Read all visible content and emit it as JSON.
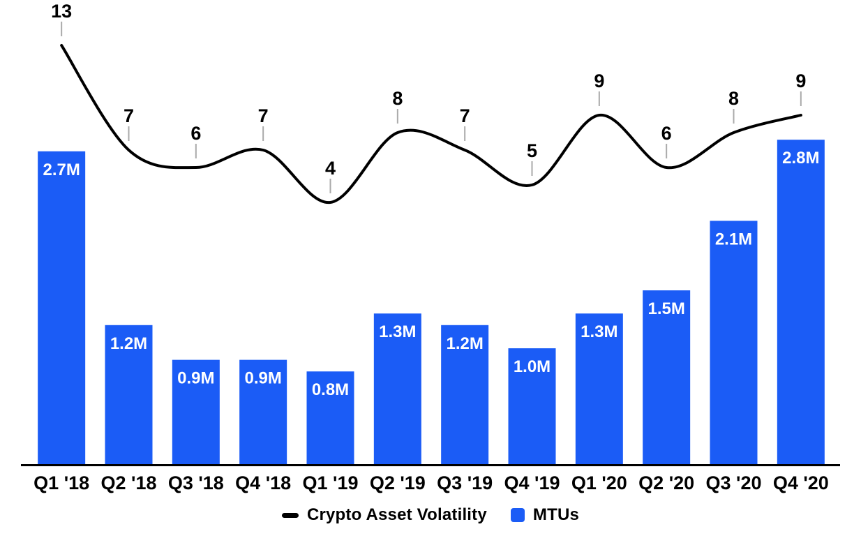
{
  "chart_data": {
    "type": "bar+line",
    "title": "",
    "categories": [
      "Q1 '18",
      "Q2 '18",
      "Q3 '18",
      "Q4 '18",
      "Q1 '19",
      "Q2 '19",
      "Q3 '19",
      "Q4 '19",
      "Q1 '20",
      "Q2 '20",
      "Q3 '20",
      "Q4 '20"
    ],
    "series": [
      {
        "name": "MTUs",
        "type": "bar",
        "color": "#1b5cf6",
        "unit": "millions",
        "values": [
          2.7,
          1.2,
          0.9,
          0.9,
          0.8,
          1.3,
          1.2,
          1.0,
          1.3,
          1.5,
          2.1,
          2.8
        ],
        "labels": [
          "2.7M",
          "1.2M",
          "0.9M",
          "0.9M",
          "0.8M",
          "1.3M",
          "1.2M",
          "1.0M",
          "1.3M",
          "1.5M",
          "2.1M",
          "2.8M"
        ]
      },
      {
        "name": "Crypto Asset Volatility",
        "type": "line",
        "color": "#000000",
        "values": [
          13,
          7,
          6,
          7,
          4,
          8,
          7,
          5,
          9,
          6,
          8,
          9
        ],
        "labels": [
          "13",
          "7",
          "6",
          "7",
          "4",
          "8",
          "7",
          "5",
          "9",
          "6",
          "8",
          "9"
        ]
      }
    ],
    "legend": {
      "position": "bottom",
      "items": [
        {
          "label": "Crypto Asset Volatility",
          "marker": "dash",
          "color": "#000000"
        },
        {
          "label": "MTUs",
          "marker": "square",
          "color": "#1b5cf6"
        }
      ]
    },
    "grid": false,
    "background": "#ffffff",
    "bar_label_color": "#ffffff",
    "axis_label_color": "#000000",
    "axis_line_color": "#000000",
    "tick_color": "#aaaaaa"
  }
}
